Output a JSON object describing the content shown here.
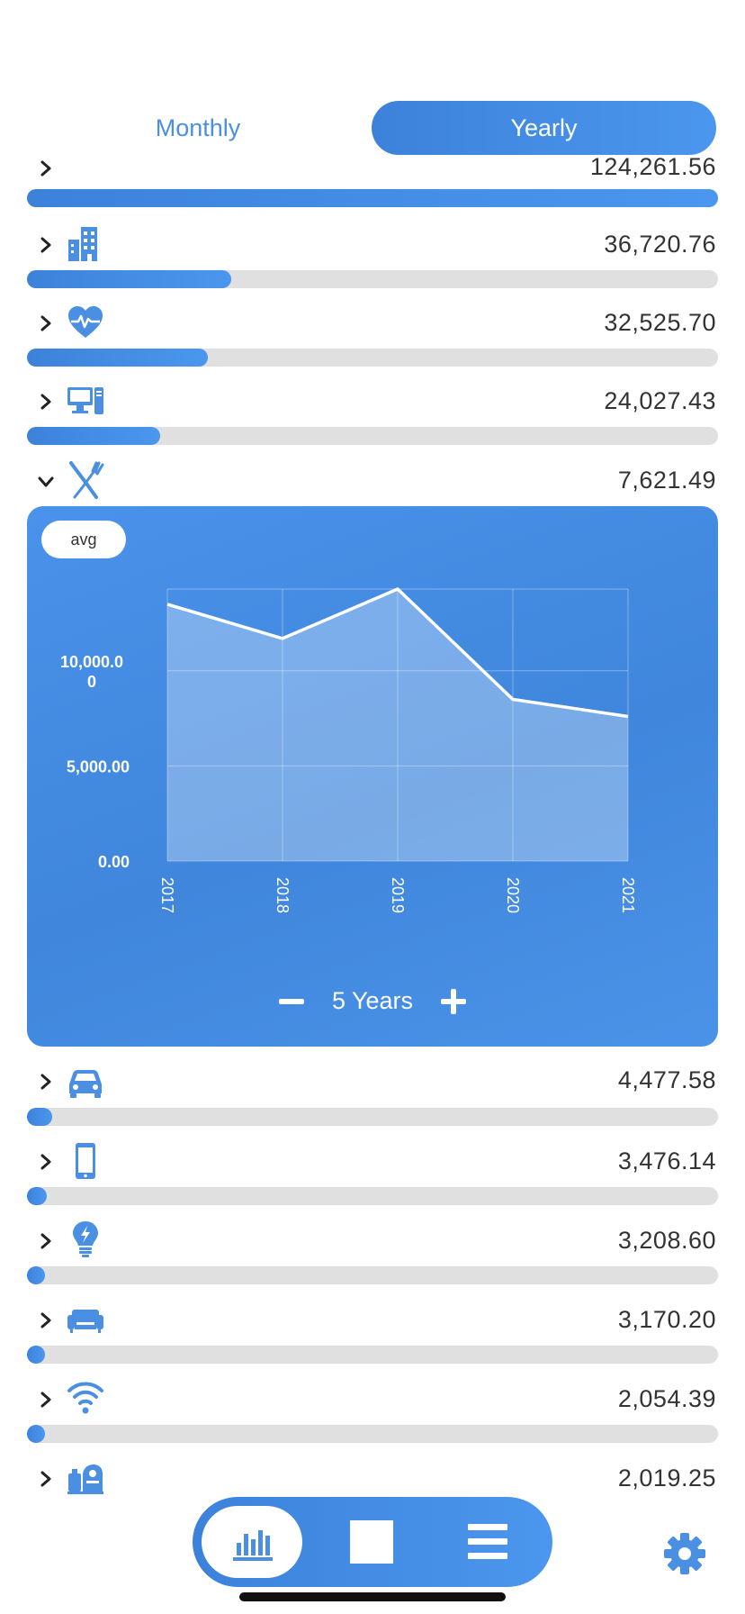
{
  "period_toggle": {
    "monthly_label": "Monthly",
    "yearly_label": "Yearly",
    "selected": "Yearly"
  },
  "categories": [
    {
      "amount": "124,261.56",
      "icon": "none",
      "share": 1.0
    },
    {
      "amount": "36,720.76",
      "icon": "building-icon",
      "share": 0.295
    },
    {
      "amount": "32,525.70",
      "icon": "heart-pulse-icon",
      "share": 0.262
    },
    {
      "amount": "24,027.43",
      "icon": "computer-icon",
      "share": 0.193
    },
    {
      "amount": "7,621.49",
      "icon": "fork-knife-icon",
      "expanded": true
    },
    {
      "amount": "4,477.58",
      "icon": "car-icon",
      "share": 0.036
    },
    {
      "amount": "3,476.14",
      "icon": "phone-icon",
      "share": 0.028
    },
    {
      "amount": "3,208.60",
      "icon": "lightbulb-icon",
      "share": 0.026
    },
    {
      "amount": "3,170.20",
      "icon": "sofa-icon",
      "share": 0.026
    },
    {
      "amount": "2,054.39",
      "icon": "wifi-icon",
      "share": 0.017
    },
    {
      "amount": "2,019.25",
      "icon": "grocery-icon"
    }
  ],
  "detail": {
    "avg_label": "avg",
    "years_label": "5 Years"
  },
  "chart_data": {
    "type": "area",
    "x": [
      "2017",
      "2018",
      "2019",
      "2020",
      "2021"
    ],
    "values": [
      13500,
      11700,
      14300,
      8500,
      7600
    ],
    "ylim": [
      0,
      14300
    ],
    "yticks": [
      0,
      5000,
      10000
    ],
    "ytick_labels": [
      "0.00",
      "5,000.00",
      "10,000.00"
    ],
    "grid": true,
    "colors": {
      "line": "#ffffff",
      "fill": "rgba(255,255,255,0.3)"
    }
  },
  "tabs": [
    "stats-icon",
    "square-icon",
    "menu-icon"
  ],
  "colors": {
    "accent": "#4a8fe2",
    "track": "#e0e0e0"
  }
}
